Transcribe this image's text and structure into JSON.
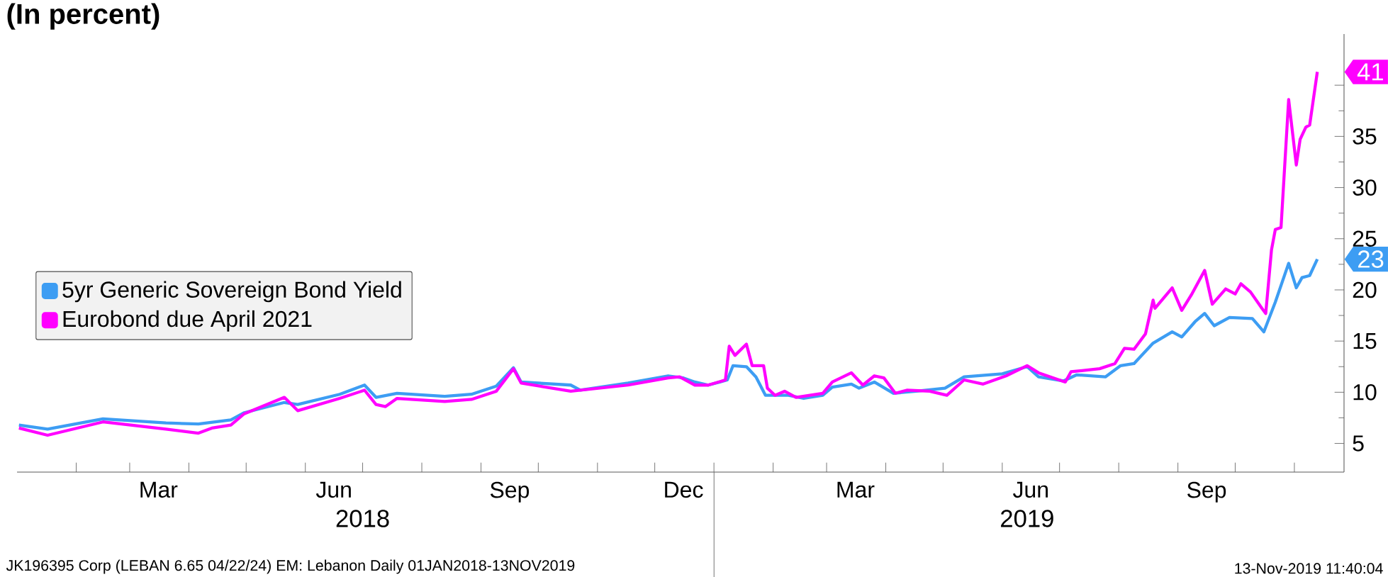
{
  "chart_data": {
    "type": "line",
    "title": "(In percent)",
    "xlim": [
      "2018-01-01",
      "2019-11-27"
    ],
    "xticks": [
      {
        "value": "2018-02-01",
        "label": null
      },
      {
        "value": "2018-03-01",
        "label": null
      },
      {
        "value": "2018-03-16",
        "label": "Mar"
      },
      {
        "value": "2018-04-01",
        "label": null
      },
      {
        "value": "2018-05-01",
        "label": null
      },
      {
        "value": "2018-06-01",
        "label": null
      },
      {
        "value": "2018-06-16",
        "label": "Jun"
      },
      {
        "value": "2018-07-01",
        "label": null
      },
      {
        "value": "2018-08-01",
        "label": null
      },
      {
        "value": "2018-09-01",
        "label": null
      },
      {
        "value": "2018-09-16",
        "label": "Sep"
      },
      {
        "value": "2018-10-01",
        "label": null
      },
      {
        "value": "2018-11-01",
        "label": null
      },
      {
        "value": "2018-12-01",
        "label": null
      },
      {
        "value": "2018-12-16",
        "label": "Dec"
      },
      {
        "value": "2019-01-01",
        "label": null
      },
      {
        "value": "2019-02-01",
        "label": null
      },
      {
        "value": "2019-03-01",
        "label": null
      },
      {
        "value": "2019-03-16",
        "label": "Mar"
      },
      {
        "value": "2019-04-01",
        "label": null
      },
      {
        "value": "2019-05-01",
        "label": null
      },
      {
        "value": "2019-06-01",
        "label": null
      },
      {
        "value": "2019-06-16",
        "label": "Jun"
      },
      {
        "value": "2019-07-01",
        "label": null
      },
      {
        "value": "2019-08-01",
        "label": null
      },
      {
        "value": "2019-09-01",
        "label": null
      },
      {
        "value": "2019-09-16",
        "label": "Sep"
      },
      {
        "value": "2019-10-01",
        "label": null
      },
      {
        "value": "2019-11-01",
        "label": null
      }
    ],
    "x2lim": [
      "2018-01-01",
      "2019-11-27"
    ],
    "x2ticks": [
      {
        "value": "2018-07-01",
        "label": "2018"
      },
      {
        "value": "2019-01-01",
        "label": null
      },
      {
        "value": "2019-06-14",
        "label": "2019"
      }
    ],
    "ylim": [
      2.2,
      45
    ],
    "yticks": [
      5,
      10,
      15,
      20,
      25,
      30,
      35,
      {
        "value": 40,
        "label": null
      }
    ],
    "grid": false,
    "legend": "left",
    "marker": "none",
    "line_style": "solid",
    "series": [
      {
        "name": "5yr Generic Sovereign Bond Yield",
        "color": "#3d9df3",
        "x": [
          "2018-01-02",
          "2018-01-17",
          "2018-02-15",
          "2018-03-20",
          "2018-04-06",
          "2018-04-23",
          "2018-04-30",
          "2018-05-21",
          "2018-05-28",
          "2018-06-19",
          "2018-07-02",
          "2018-07-08",
          "2018-07-19",
          "2018-08-13",
          "2018-08-27",
          "2018-09-09",
          "2018-09-18",
          "2018-09-22",
          "2018-10-18",
          "2018-10-23",
          "2018-11-17",
          "2018-12-08",
          "2018-12-16",
          "2018-12-22",
          "2018-12-29",
          "2019-01-08",
          "2019-01-11",
          "2019-01-18",
          "2019-01-23",
          "2019-01-28",
          "2019-02-09",
          "2019-02-17",
          "2019-02-27",
          "2019-03-04",
          "2019-03-14",
          "2019-03-18",
          "2019-03-26",
          "2019-04-05",
          "2019-04-17",
          "2019-05-02",
          "2019-05-12",
          "2019-06-01",
          "2019-06-14",
          "2019-06-20",
          "2019-07-03",
          "2019-07-10",
          "2019-07-25",
          "2019-08-02",
          "2019-08-09",
          "2019-08-19",
          "2019-08-29",
          "2019-09-03",
          "2019-09-10",
          "2019-09-15",
          "2019-09-20",
          "2019-09-28",
          "2019-10-10",
          "2019-10-16",
          "2019-10-22",
          "2019-10-29",
          "2019-11-02",
          "2019-11-05",
          "2019-11-09",
          "2019-11-13"
        ],
        "values": [
          6.8,
          6.4,
          7.4,
          7.0,
          6.9,
          7.3,
          8.0,
          9.0,
          8.8,
          9.8,
          10.7,
          9.5,
          9.9,
          9.6,
          9.8,
          10.6,
          12.4,
          11.0,
          10.7,
          10.2,
          10.9,
          11.6,
          11.4,
          11.0,
          10.7,
          11.2,
          12.6,
          12.5,
          11.5,
          9.7,
          9.7,
          9.4,
          9.7,
          10.5,
          10.8,
          10.4,
          11.0,
          9.9,
          10.1,
          10.4,
          11.5,
          11.8,
          12.5,
          11.5,
          11.1,
          11.7,
          11.5,
          12.6,
          12.8,
          14.8,
          15.9,
          15.4,
          16.9,
          17.7,
          16.5,
          17.3,
          17.2,
          15.9,
          18.8,
          22.6,
          20.2,
          21.2,
          21.4,
          23.0
        ]
      },
      {
        "name": "Eurobond due April 2021",
        "color": "#ff00ff",
        "x": [
          "2018-01-02",
          "2018-01-17",
          "2018-02-15",
          "2018-03-20",
          "2018-04-06",
          "2018-04-13",
          "2018-04-23",
          "2018-04-30",
          "2018-05-21",
          "2018-05-28",
          "2018-06-19",
          "2018-07-02",
          "2018-07-08",
          "2018-07-13",
          "2018-07-19",
          "2018-08-13",
          "2018-08-27",
          "2018-09-09",
          "2018-09-18",
          "2018-09-22",
          "2018-10-18",
          "2018-11-17",
          "2018-12-08",
          "2018-12-14",
          "2018-12-22",
          "2018-12-29",
          "2019-01-07",
          "2019-01-09",
          "2019-01-12",
          "2019-01-18",
          "2019-01-21",
          "2019-01-27",
          "2019-01-29",
          "2019-02-02",
          "2019-02-07",
          "2019-02-13",
          "2019-02-27",
          "2019-03-04",
          "2019-03-14",
          "2019-03-20",
          "2019-03-26",
          "2019-03-31",
          "2019-04-06",
          "2019-04-12",
          "2019-04-24",
          "2019-05-03",
          "2019-05-12",
          "2019-05-22",
          "2019-06-03",
          "2019-06-14",
          "2019-06-20",
          "2019-07-04",
          "2019-07-07",
          "2019-07-22",
          "2019-07-30",
          "2019-08-04",
          "2019-08-09",
          "2019-08-15",
          "2019-08-19",
          "2019-08-20",
          "2019-08-29",
          "2019-09-03",
          "2019-09-08",
          "2019-09-15",
          "2019-09-19",
          "2019-09-26",
          "2019-10-01",
          "2019-10-04",
          "2019-10-09",
          "2019-10-15",
          "2019-10-17",
          "2019-10-20",
          "2019-10-22",
          "2019-10-25",
          "2019-10-29",
          "2019-11-02",
          "2019-11-04",
          "2019-11-07",
          "2019-11-09",
          "2019-11-13"
        ],
        "values": [
          6.5,
          5.8,
          7.1,
          6.4,
          6.0,
          6.5,
          6.8,
          7.9,
          9.5,
          8.2,
          9.4,
          10.2,
          8.8,
          8.6,
          9.4,
          9.1,
          9.3,
          10.1,
          12.3,
          10.9,
          10.1,
          10.7,
          11.4,
          11.5,
          10.7,
          10.7,
          11.2,
          14.5,
          13.6,
          14.7,
          12.6,
          12.6,
          10.4,
          9.7,
          10.1,
          9.5,
          9.9,
          11.0,
          11.9,
          10.7,
          11.6,
          11.4,
          9.9,
          10.2,
          10.1,
          9.7,
          11.2,
          10.8,
          11.6,
          12.6,
          11.9,
          11.0,
          12.0,
          12.3,
          12.8,
          14.3,
          14.2,
          15.7,
          19.0,
          18.2,
          20.2,
          18.0,
          19.5,
          21.9,
          18.6,
          20.1,
          19.6,
          20.6,
          19.8,
          18.2,
          17.7,
          23.9,
          25.9,
          26.1,
          38.6,
          32.2,
          34.7,
          35.9,
          36.1,
          41.3
        ]
      }
    ],
    "annotations": [
      {
        "text": "41",
        "x": "2019-11-13",
        "y": 41.3
      },
      {
        "text": "23",
        "x": "2019-11-13",
        "y": 23.0
      },
      "JK196395 Corp (LEBAN 6.65 04/22/24) EM: Lebanon  Daily 01JAN2018-13NOV2019",
      "13-Nov-2019 11:40:04"
    ]
  }
}
